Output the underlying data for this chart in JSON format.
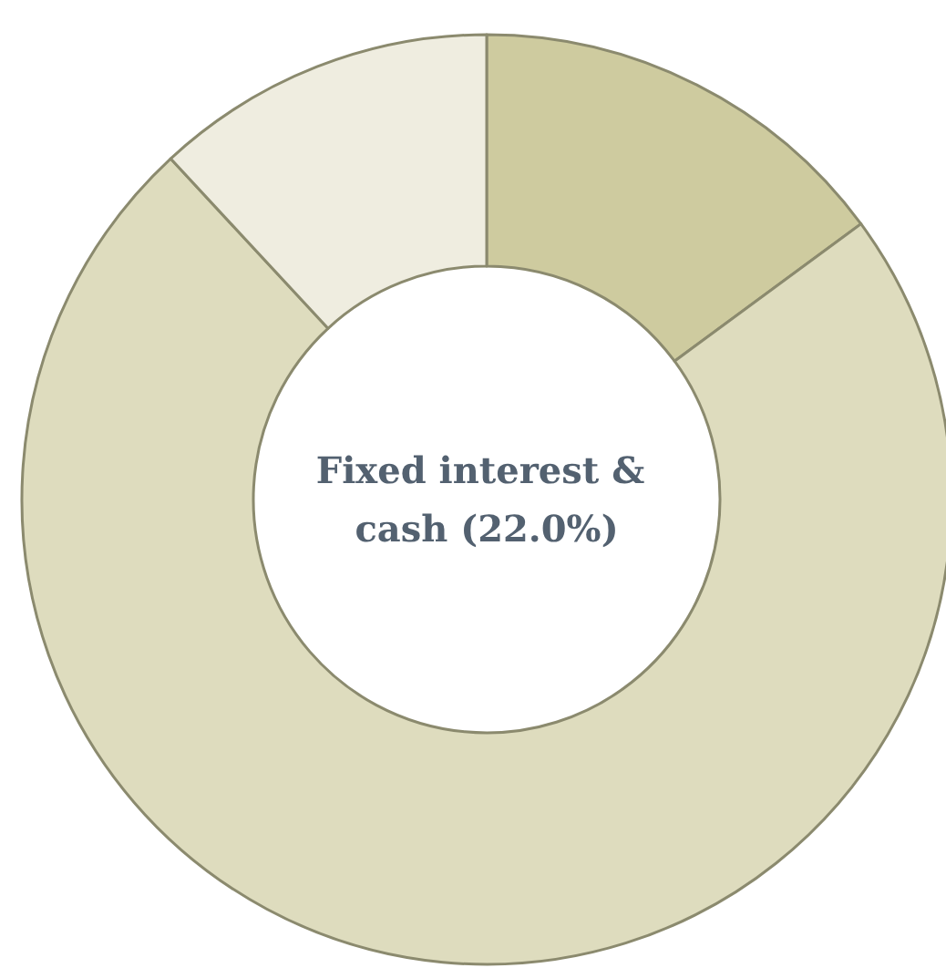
{
  "chart_data": {
    "type": "donut",
    "categories": [
      null,
      null,
      null
    ],
    "values": [
      14.9,
      73.2,
      11.9
    ],
    "colors": [
      "#cecb9f",
      "#dedcbe",
      "#efede0"
    ],
    "annotations": [
      "Fixed interest & cash (22.0%)"
    ]
  }
}
